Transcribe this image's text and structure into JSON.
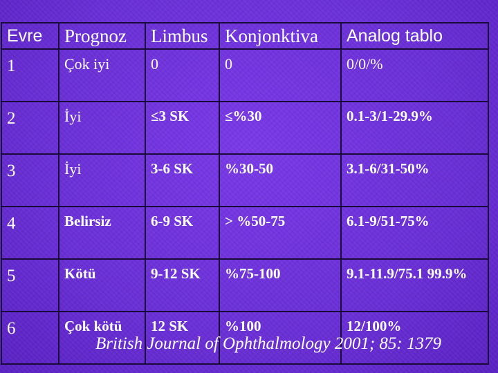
{
  "table": {
    "headers": [
      "Evre",
      "Prognoz",
      "Limbus",
      "Konjonktiva",
      "Analog tablo"
    ],
    "rows": [
      [
        "1",
        "Çok iyi",
        "0",
        "0",
        "0/0/%"
      ],
      [
        "2",
        "İyi",
        "≤3 SK",
        "≤%30",
        "0.1-3/1-29.9%"
      ],
      [
        "3",
        "İyi",
        "3-6 SK",
        "%30-50",
        "3.1-6/31-50%"
      ],
      [
        "4",
        "Belirsiz",
        "6-9 SK",
        "> %50-75",
        "6.1-9/51-75%"
      ],
      [
        "5",
        "Kötü",
        "9-12 SK",
        "%75-100",
        "9.1-11.9/75.1 99.9%"
      ],
      [
        "6",
        "Çok kötü",
        "12 SK",
        "%100",
        "12/100%"
      ]
    ]
  },
  "citation": "British Journal of Ophthalmology 2001; 85: 1379",
  "colors": {
    "background": "#6a2fd6",
    "grid_lines": "#1a0a3a",
    "text": "#ffffff"
  }
}
